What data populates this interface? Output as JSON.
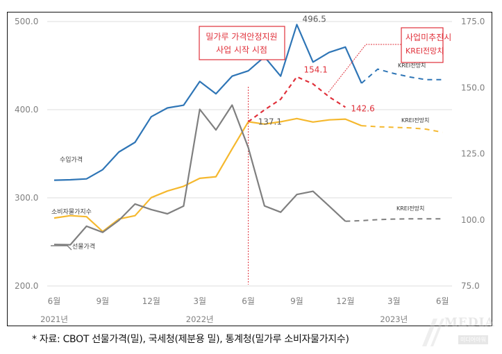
{
  "chart_data": {
    "type": "line",
    "title": "",
    "x": [
      "2021-06",
      "2021-07",
      "2021-08",
      "2021-09",
      "2021-10",
      "2021-11",
      "2021-12",
      "2022-01",
      "2022-02",
      "2022-03",
      "2022-04",
      "2022-05",
      "2022-06",
      "2022-07",
      "2022-08",
      "2022-09",
      "2022-10",
      "2022-11",
      "2022-12",
      "2023-01",
      "2023-02",
      "2023-03",
      "2023-04",
      "2023-05",
      "2023-06"
    ],
    "x_tick_labels": [
      "6월",
      "9월",
      "12월",
      "3월",
      "6월",
      "9월",
      "12월",
      "3월",
      "6월"
    ],
    "x_year_labels": [
      "2021년",
      "2022년",
      "2023년"
    ],
    "y_left": {
      "ticks": [
        "200.0",
        "300.0",
        "400.0",
        "500.0"
      ],
      "range": [
        200,
        500
      ]
    },
    "y_right": {
      "ticks": [
        "75.0",
        "100.0",
        "125.0",
        "150.0",
        "175.0"
      ],
      "range": [
        75,
        175
      ]
    },
    "grid": true,
    "series": [
      {
        "name": "수입가격",
        "axis": "left",
        "color": "#2e75b6",
        "values": [
          320,
          320.5,
          321.5,
          332,
          352,
          363,
          392,
          402,
          405,
          432,
          418,
          438,
          444,
          460,
          438,
          496.5,
          454,
          465,
          471,
          430,
          null,
          null,
          null,
          null,
          null
        ],
        "forecast": [
          null,
          null,
          null,
          null,
          null,
          null,
          null,
          null,
          null,
          null,
          null,
          null,
          null,
          null,
          null,
          null,
          null,
          null,
          null,
          430,
          446,
          441,
          437,
          434,
          434
        ],
        "forecast_label": "KREI전망치"
      },
      {
        "name": "소비자물가지수",
        "axis": "right",
        "color": "#f5b82e",
        "values": [
          100.7,
          101.6,
          101.2,
          95.6,
          100.3,
          101.6,
          108.4,
          110.9,
          112.7,
          115.7,
          116.3,
          126.8,
          137.1,
          136.2,
          137.1,
          138.3,
          137.0,
          137.8,
          138.1,
          135.6,
          null,
          null,
          null,
          null,
          null
        ],
        "forecast": [
          null,
          null,
          null,
          null,
          null,
          null,
          null,
          null,
          null,
          null,
          null,
          null,
          null,
          null,
          null,
          null,
          null,
          null,
          null,
          135.6,
          135.2,
          135.0,
          134.8,
          134.3,
          133.1
        ],
        "forecast_label": "KREI전망치"
      },
      {
        "name": "선물가격",
        "axis": "right",
        "color": "#7f7f7f",
        "values": [
          90.7,
          90.6,
          97.6,
          95.3,
          99.8,
          106.0,
          103.9,
          102.3,
          105.2,
          141.8,
          134.0,
          143.4,
          127.3,
          105.3,
          102.9,
          109.6,
          110.8,
          105.2,
          99.5,
          null,
          null,
          null,
          null,
          null,
          null
        ],
        "forecast": [
          null,
          null,
          null,
          null,
          null,
          null,
          null,
          null,
          null,
          null,
          null,
          null,
          null,
          null,
          null,
          null,
          null,
          null,
          99.5,
          99.7,
          100.1,
          100.3,
          100.4,
          100.4,
          100.4
        ],
        "forecast_label": "KREI전망치"
      },
      {
        "name": "사업미추진시 KREI전망치",
        "axis": "right",
        "color": "#e0303a",
        "dashed": true,
        "values": [
          null,
          null,
          null,
          null,
          null,
          null,
          null,
          null,
          null,
          null,
          null,
          null,
          137.1,
          141.6,
          145.6,
          154.1,
          151.4,
          146.5,
          142.6,
          null,
          null,
          null,
          null,
          null,
          null
        ]
      }
    ],
    "data_labels": [
      {
        "series": "수입가격",
        "x": "2022-09",
        "text": "496.5"
      },
      {
        "series": "소비자물가지수",
        "x": "2022-06",
        "text": "137.1"
      },
      {
        "series": "사업미추진시 KREI전망치",
        "x": "2022-09",
        "text": "154.1"
      },
      {
        "series": "사업미추진시 KREI전망치",
        "x": "2022-12",
        "text": "142.6"
      }
    ],
    "annotations": [
      {
        "text_lines": [
          "밀가루 가격안정지원",
          "사업 시작 시점"
        ],
        "x": "2022-06",
        "type": "vertical-line-with-box",
        "color": "#e0303a"
      },
      {
        "text_lines": [
          "사업미추진시",
          "KREI전망치"
        ],
        "type": "callout-box",
        "color": "#e0303a"
      }
    ],
    "legend": "inline-labels"
  },
  "caption": "* 자료: CBOT 선물가격(밀), 국세청(제분용 밀), 통계청(밀가루 소비자물가지수)",
  "watermark": {
    "text": "MEDIA",
    "sub": "미디어아워"
  }
}
